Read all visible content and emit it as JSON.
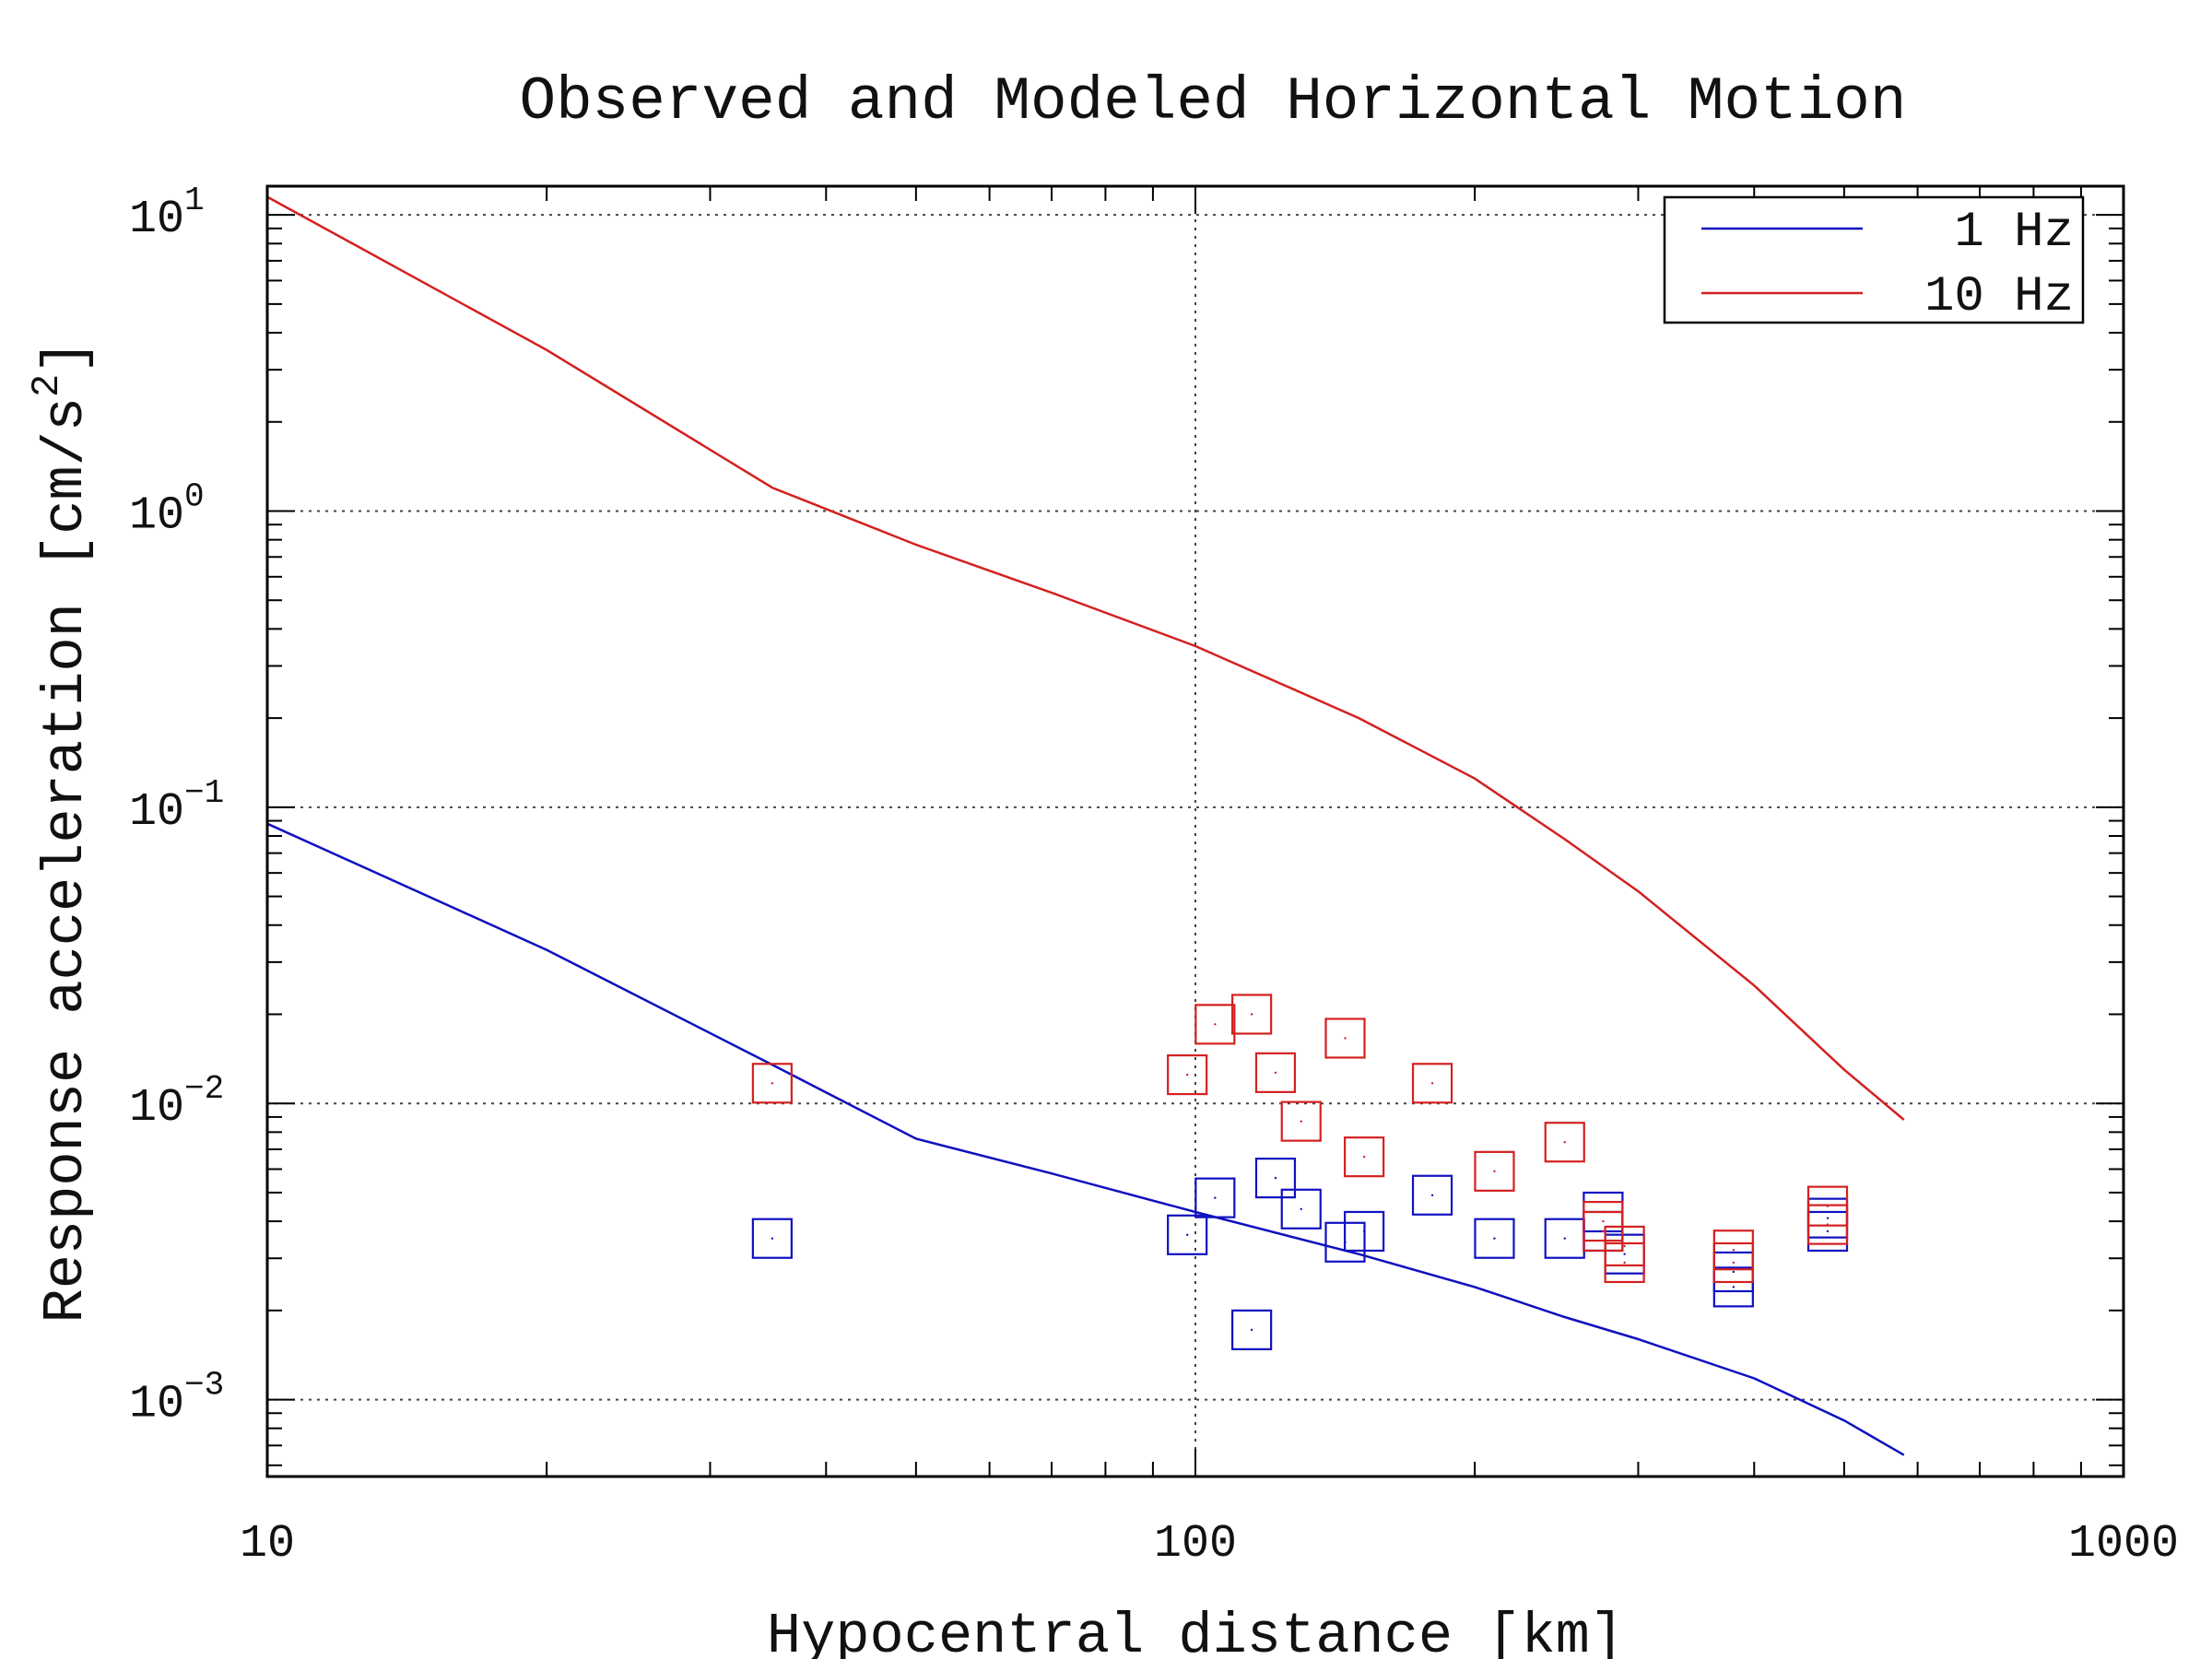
{
  "chart_data": {
    "type": "scatter",
    "title": "Observed and Modeled Horizontal Motion",
    "xlabel": "Hypocentral distance [km]",
    "ylabel_main": "Response acceleration [cm/s",
    "ylabel_sup": "2",
    "ylabel_end": "]",
    "x_scale": "log",
    "y_scale": "log",
    "xlim": [
      10,
      1000
    ],
    "ylim": [
      0.00055,
      12.5
    ],
    "grid": true,
    "legend_position": "top-right",
    "x_ticks": [
      {
        "value": 10,
        "label": "10"
      },
      {
        "value": 100,
        "label": "100"
      },
      {
        "value": 1000,
        "label": "1000"
      }
    ],
    "y_ticks": [
      {
        "value": 10,
        "base": "10",
        "exp": "1"
      },
      {
        "value": 1,
        "base": "10",
        "exp": "0"
      },
      {
        "value": 0.1,
        "base": "10",
        "exp": "−1"
      },
      {
        "value": 0.01,
        "base": "10",
        "exp": "−2"
      },
      {
        "value": 0.001,
        "base": "10",
        "exp": "−3"
      }
    ],
    "series": [
      {
        "name": "1 Hz",
        "color": "#1010c0",
        "model": [
          [
            10,
            0.088
          ],
          [
            20,
            0.033
          ],
          [
            35,
            0.0135
          ],
          [
            50,
            0.0076
          ],
          [
            70,
            0.0058
          ],
          [
            100,
            0.0043
          ],
          [
            150,
            0.0031
          ],
          [
            200,
            0.0024
          ],
          [
            250,
            0.0019
          ],
          [
            300,
            0.0016
          ],
          [
            400,
            0.00118
          ],
          [
            500,
            0.00085
          ],
          [
            580,
            0.00065
          ]
        ],
        "observed": [
          [
            35,
            0.0035
          ],
          [
            98,
            0.0036
          ],
          [
            105,
            0.0048
          ],
          [
            115,
            0.00172
          ],
          [
            122,
            0.0056
          ],
          [
            130,
            0.0044
          ],
          [
            145,
            0.0034
          ],
          [
            152,
            0.0037
          ],
          [
            180,
            0.0049
          ],
          [
            210,
            0.0035
          ],
          [
            250,
            0.0035
          ],
          [
            275,
            0.0043
          ],
          [
            290,
            0.0031
          ],
          [
            380,
            0.0024
          ],
          [
            480,
            0.0041
          ],
          [
            480,
            0.0037
          ],
          [
            275,
            0.0037
          ],
          [
            380,
            0.0027
          ]
        ]
      },
      {
        "name": "10 Hz",
        "color": "#d42020",
        "model": [
          [
            10,
            11.5
          ],
          [
            20,
            3.5
          ],
          [
            35,
            1.2
          ],
          [
            50,
            0.77
          ],
          [
            70,
            0.53
          ],
          [
            100,
            0.35
          ],
          [
            150,
            0.2
          ],
          [
            200,
            0.125
          ],
          [
            250,
            0.078
          ],
          [
            300,
            0.052
          ],
          [
            400,
            0.025
          ],
          [
            500,
            0.013
          ],
          [
            580,
            0.0088
          ]
        ],
        "observed": [
          [
            35,
            0.0117
          ],
          [
            98,
            0.0125
          ],
          [
            105,
            0.0185
          ],
          [
            115,
            0.02
          ],
          [
            122,
            0.0127
          ],
          [
            130,
            0.0087
          ],
          [
            145,
            0.0166
          ],
          [
            152,
            0.0066
          ],
          [
            180,
            0.0117
          ],
          [
            210,
            0.0059
          ],
          [
            250,
            0.0074
          ],
          [
            275,
            0.004
          ],
          [
            290,
            0.0029
          ],
          [
            380,
            0.0029
          ],
          [
            480,
            0.0045
          ],
          [
            275,
            0.0037
          ],
          [
            290,
            0.0033
          ],
          [
            380,
            0.0032
          ],
          [
            480,
            0.0039
          ]
        ]
      }
    ]
  }
}
